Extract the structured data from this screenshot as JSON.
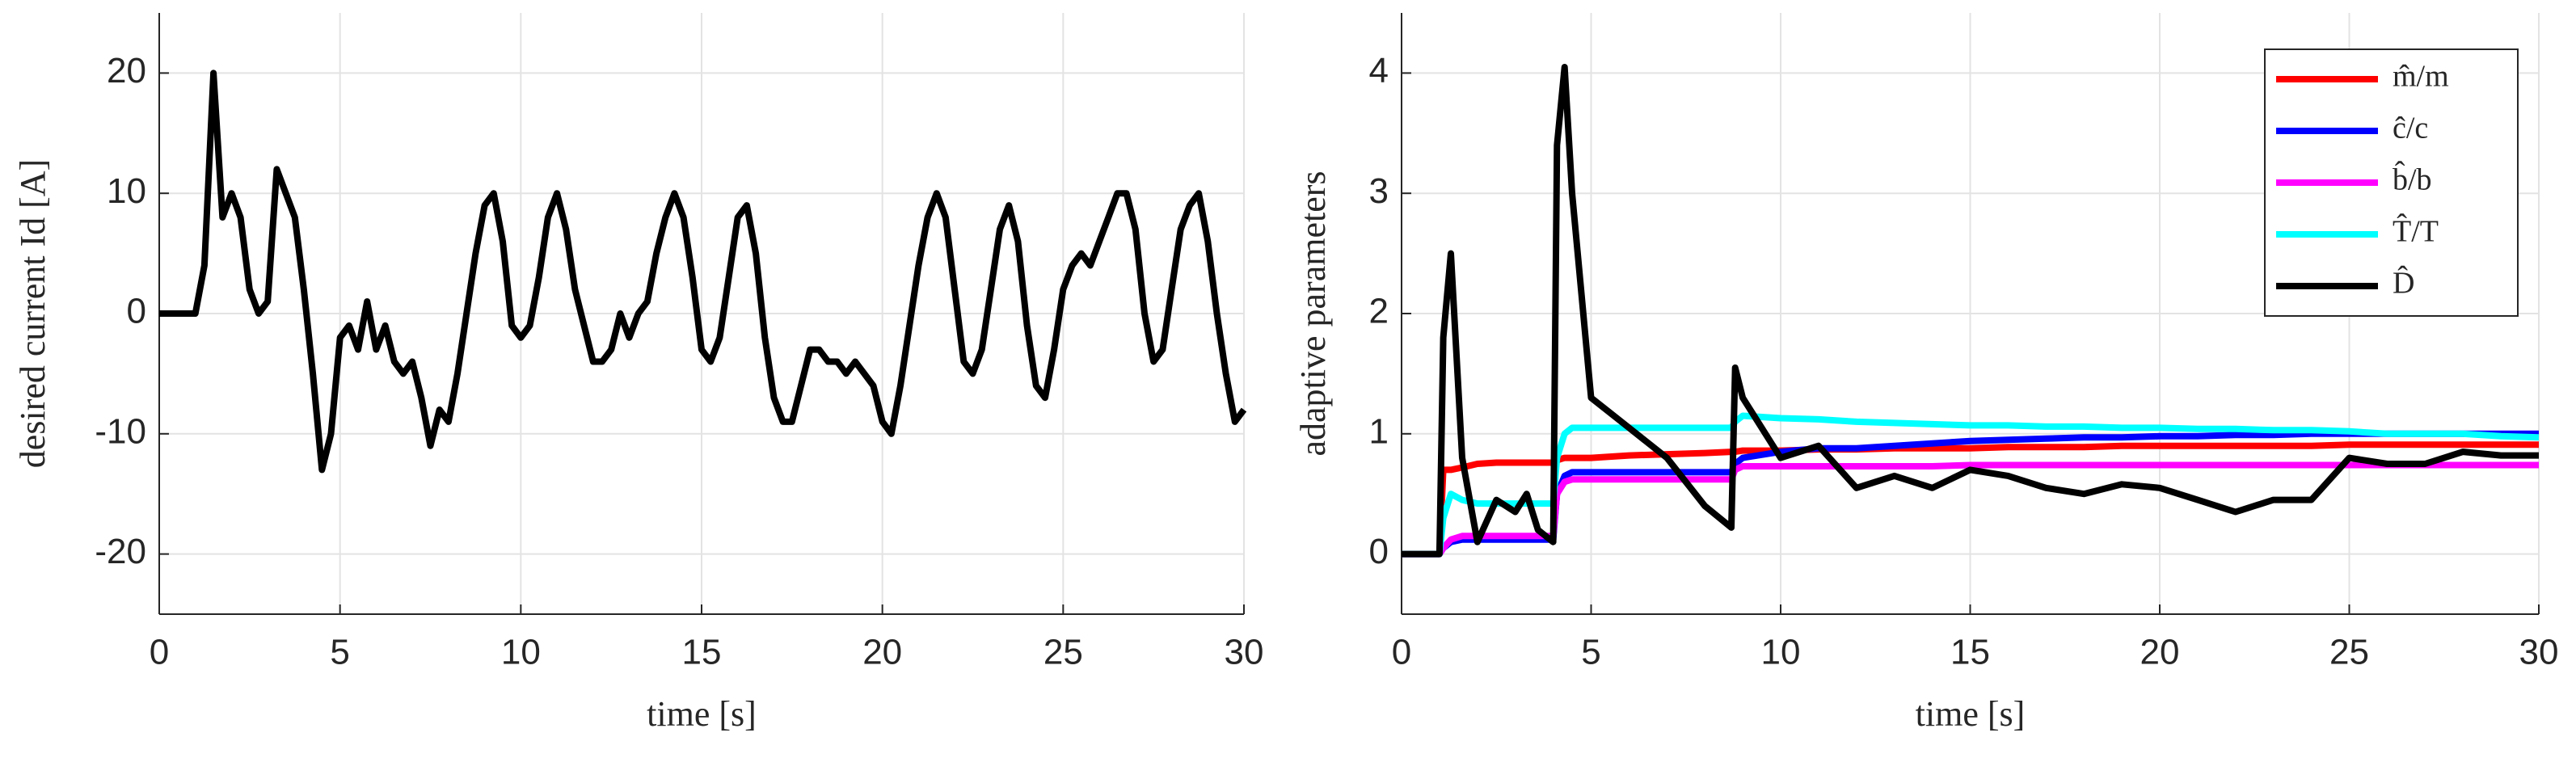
{
  "chart_data": [
    {
      "type": "line",
      "xlabel": "time [s]",
      "ylabel": "desired current Id [A]",
      "color": "#000000",
      "grid": true,
      "xlim": [
        0,
        30
      ],
      "xticks": [
        0,
        5,
        10,
        15,
        20,
        25,
        30
      ],
      "ylim": [
        -25,
        25
      ],
      "yticks": [
        -20,
        -10,
        0,
        10,
        20
      ],
      "x": [
        0,
        0.25,
        0.5,
        0.75,
        1,
        1.25,
        1.5,
        1.75,
        2,
        2.25,
        2.5,
        2.75,
        3,
        3.25,
        3.5,
        3.75,
        4,
        4.25,
        4.5,
        4.75,
        5,
        5.25,
        5.5,
        5.75,
        6,
        6.25,
        6.5,
        6.75,
        7,
        7.25,
        7.5,
        7.75,
        8,
        8.25,
        8.5,
        8.75,
        9,
        9.25,
        9.5,
        9.75,
        10,
        10.25,
        10.5,
        10.75,
        11,
        11.25,
        11.5,
        11.75,
        12,
        12.25,
        12.5,
        12.75,
        13,
        13.25,
        13.5,
        13.75,
        14,
        14.25,
        14.5,
        14.75,
        15,
        15.25,
        15.5,
        15.75,
        16,
        16.25,
        16.5,
        16.75,
        17,
        17.25,
        17.5,
        17.75,
        18,
        18.25,
        18.5,
        18.75,
        19,
        19.25,
        19.5,
        19.75,
        20,
        20.25,
        20.5,
        20.75,
        21,
        21.25,
        21.5,
        21.75,
        22,
        22.25,
        22.5,
        22.75,
        23,
        23.25,
        23.5,
        23.75,
        24,
        24.25,
        24.5,
        24.75,
        25,
        25.25,
        25.5,
        25.75,
        26,
        26.25,
        26.5,
        26.75,
        27,
        27.25,
        27.5,
        27.75,
        28,
        28.25,
        28.5,
        28.75,
        29,
        29.25,
        29.5,
        29.75,
        30
      ],
      "values": [
        0,
        0,
        0,
        0,
        0,
        4,
        20,
        8,
        10,
        8,
        2,
        0,
        1,
        12,
        10,
        8,
        2,
        -5,
        -13,
        -10,
        -2,
        -1,
        -3,
        1,
        -3,
        -1,
        -4,
        -5,
        -4,
        -7,
        -11,
        -8,
        -9,
        -5,
        0,
        5,
        9,
        10,
        6,
        -1,
        -2,
        -1,
        3,
        8,
        10,
        7,
        2,
        -1,
        -4,
        -4,
        -3,
        0,
        -2,
        0,
        1,
        5,
        8,
        10,
        8,
        3,
        -3,
        -4,
        -2,
        3,
        8,
        9,
        5,
        -2,
        -7,
        -9,
        -9,
        -6,
        -3,
        -3,
        -4,
        -4,
        -5,
        -4,
        -5,
        -6,
        -9,
        -10,
        -6,
        -1,
        4,
        8,
        10,
        8,
        2,
        -4,
        -5,
        -3,
        2,
        7,
        9,
        6,
        -1,
        -6,
        -7,
        -3,
        2,
        4,
        5,
        4,
        6,
        8,
        10,
        10,
        7,
        0,
        -4,
        -3,
        2,
        7,
        9,
        10,
        6,
        0,
        -5,
        -9,
        -8
      ]
    },
    {
      "type": "line",
      "xlabel": "time [s]",
      "ylabel": "adaptive parameters",
      "grid": true,
      "legend": "northeast",
      "xlim": [
        0,
        30
      ],
      "xticks": [
        0,
        5,
        10,
        15,
        20,
        25,
        30
      ],
      "ylim": [
        -0.5,
        4.5
      ],
      "yticks": [
        0,
        1,
        2,
        3,
        4
      ],
      "x": [
        0,
        1,
        1.1,
        1.3,
        1.6,
        2,
        2.5,
        3,
        3.3,
        3.6,
        4,
        4.1,
        4.3,
        4.5,
        5,
        6,
        7,
        8,
        8.7,
        8.8,
        9,
        10,
        11,
        12,
        13,
        14,
        15,
        16,
        17,
        18,
        19,
        20,
        21,
        22,
        23,
        24,
        25,
        26,
        27,
        28,
        29,
        30
      ],
      "series": [
        {
          "name": "m̂/m",
          "color": "#ff0000",
          "values": [
            0,
            0,
            0.7,
            0.7,
            0.72,
            0.75,
            0.76,
            0.76,
            0.76,
            0.76,
            0.76,
            0.78,
            0.8,
            0.8,
            0.8,
            0.82,
            0.83,
            0.84,
            0.85,
            0.85,
            0.86,
            0.86,
            0.87,
            0.87,
            0.88,
            0.88,
            0.88,
            0.89,
            0.89,
            0.89,
            0.9,
            0.9,
            0.9,
            0.9,
            0.9,
            0.9,
            0.91,
            0.91,
            0.91,
            0.91,
            0.91,
            0.91
          ]
        },
        {
          "name": "ĉ/c",
          "color": "#0000ff",
          "values": [
            0,
            0,
            0.05,
            0.1,
            0.12,
            0.12,
            0.12,
            0.12,
            0.12,
            0.12,
            0.12,
            0.5,
            0.65,
            0.68,
            0.68,
            0.68,
            0.68,
            0.68,
            0.68,
            0.75,
            0.8,
            0.85,
            0.88,
            0.88,
            0.9,
            0.92,
            0.94,
            0.95,
            0.96,
            0.97,
            0.97,
            0.98,
            0.98,
            0.99,
            0.99,
            1,
            1,
            1,
            1,
            1,
            1,
            1
          ]
        },
        {
          "name": "b̂/b",
          "color": "#ff00ff",
          "values": [
            0,
            0,
            0.05,
            0.12,
            0.15,
            0.15,
            0.15,
            0.15,
            0.15,
            0.15,
            0.15,
            0.5,
            0.6,
            0.62,
            0.62,
            0.62,
            0.62,
            0.62,
            0.62,
            0.7,
            0.73,
            0.73,
            0.73,
            0.73,
            0.73,
            0.73,
            0.74,
            0.74,
            0.74,
            0.74,
            0.74,
            0.74,
            0.74,
            0.74,
            0.74,
            0.74,
            0.74,
            0.74,
            0.74,
            0.74,
            0.74,
            0.74
          ]
        },
        {
          "name": "T̂/T",
          "color": "#00ffff",
          "values": [
            0,
            0,
            0.3,
            0.5,
            0.45,
            0.42,
            0.42,
            0.42,
            0.42,
            0.42,
            0.42,
            0.8,
            1.0,
            1.05,
            1.05,
            1.05,
            1.05,
            1.05,
            1.05,
            1.1,
            1.15,
            1.13,
            1.12,
            1.1,
            1.09,
            1.08,
            1.07,
            1.07,
            1.06,
            1.06,
            1.05,
            1.05,
            1.04,
            1.04,
            1.03,
            1.03,
            1.02,
            1.0,
            1.0,
            1.0,
            0.98,
            0.97
          ]
        },
        {
          "name": "D̂",
          "color": "#000000",
          "values": [
            0,
            0,
            1.8,
            2.5,
            0.8,
            0.1,
            0.45,
            0.35,
            0.5,
            0.2,
            0.1,
            3.4,
            4.05,
            3.0,
            1.3,
            1.05,
            0.8,
            0.4,
            0.22,
            1.55,
            1.3,
            0.8,
            0.9,
            0.55,
            0.65,
            0.55,
            0.7,
            0.65,
            0.55,
            0.5,
            0.58,
            0.55,
            0.45,
            0.35,
            0.45,
            0.45,
            0.8,
            0.75,
            0.75,
            0.85,
            0.82,
            0.82
          ]
        }
      ]
    }
  ]
}
